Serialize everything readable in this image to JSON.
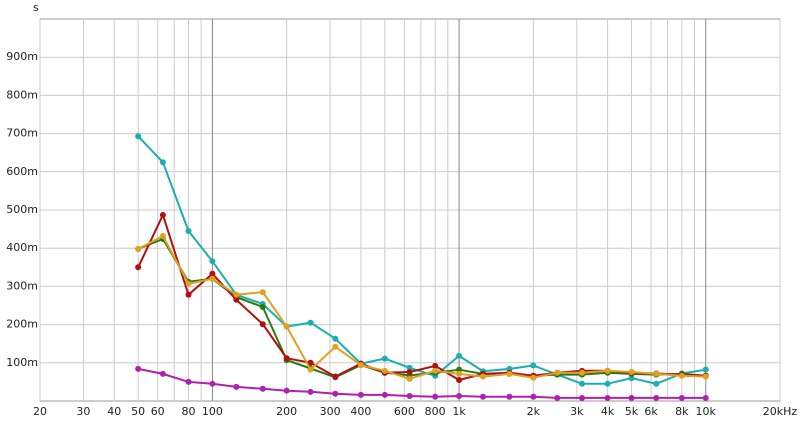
{
  "chart_data": {
    "type": "line",
    "y_label": "s",
    "xscale": "log",
    "x": [
      50,
      63,
      80,
      100,
      125,
      160,
      200,
      250,
      315,
      400,
      500,
      630,
      800,
      1000,
      1250,
      1600,
      2000,
      2500,
      3150,
      4000,
      5000,
      6300,
      8000,
      10000
    ],
    "series": [
      {
        "color": "#1aafb0",
        "values": [
          0.693,
          0.625,
          0.445,
          0.366,
          0.278,
          0.254,
          0.195,
          0.205,
          0.163,
          0.098,
          0.111,
          0.087,
          0.066,
          0.118,
          0.078,
          0.084,
          0.093,
          0.069,
          0.045,
          0.045,
          0.06,
          0.045,
          0.072,
          0.082
        ]
      },
      {
        "color": "#2a7a10",
        "values": [
          0.398,
          0.424,
          0.312,
          0.32,
          0.272,
          0.246,
          0.107,
          0.085,
          0.062,
          0.094,
          0.074,
          0.067,
          0.074,
          0.082,
          0.071,
          0.071,
          0.066,
          0.069,
          0.069,
          0.074,
          0.071,
          0.069,
          0.071,
          0.066
        ]
      },
      {
        "color": "#b01010",
        "values": [
          0.35,
          0.487,
          0.278,
          0.333,
          0.265,
          0.201,
          0.112,
          0.1,
          0.064,
          0.098,
          0.074,
          0.076,
          0.092,
          0.055,
          0.071,
          0.074,
          0.066,
          0.074,
          0.079,
          0.079,
          0.074,
          0.072,
          0.069,
          0.066
        ]
      },
      {
        "color": "#e0a020",
        "values": [
          0.398,
          0.432,
          0.307,
          0.32,
          0.278,
          0.285,
          0.195,
          0.082,
          0.142,
          0.094,
          0.079,
          0.058,
          0.079,
          0.071,
          0.064,
          0.071,
          0.061,
          0.074,
          0.074,
          0.079,
          0.076,
          0.071,
          0.066,
          0.064
        ]
      },
      {
        "color": "#b020b0",
        "values": [
          0.084,
          0.071,
          0.05,
          0.045,
          0.037,
          0.032,
          0.027,
          0.024,
          0.019,
          0.016,
          0.016,
          0.013,
          0.011,
          0.013,
          0.011,
          0.011,
          0.011,
          0.008,
          0.008,
          0.008,
          0.008,
          0.008,
          0.008,
          0.008
        ]
      }
    ],
    "xlim": [
      20,
      20000
    ],
    "ylim": [
      0,
      1
    ],
    "xticks": [
      20,
      30,
      40,
      50,
      60,
      80,
      100,
      200,
      300,
      400,
      600,
      800,
      {
        "value": 1000,
        "label": "1k"
      },
      {
        "value": 2000,
        "label": "2k"
      },
      {
        "value": 3000,
        "label": "3k"
      },
      {
        "value": 4000,
        "label": "4k"
      },
      {
        "value": 5000,
        "label": "5k"
      },
      {
        "value": 6000,
        "label": "6k"
      },
      {
        "value": 8000,
        "label": "8k"
      },
      {
        "value": 10000,
        "label": "10k"
      },
      {
        "value": 20000,
        "label": "20kHz"
      }
    ],
    "xminor": [
      70,
      90,
      500,
      700,
      900,
      7000,
      9000
    ],
    "yticks": [
      {
        "value": 0.1,
        "label": "100m"
      },
      {
        "value": 0.2,
        "label": "200m"
      },
      {
        "value": 0.3,
        "label": "300m"
      },
      {
        "value": 0.4,
        "label": "400m"
      },
      {
        "value": 0.5,
        "label": "500m"
      },
      {
        "value": 0.6,
        "label": "600m"
      },
      {
        "value": 0.7,
        "label": "700m"
      },
      {
        "value": 0.8,
        "label": "800m"
      },
      {
        "value": 0.9,
        "label": "900m"
      }
    ],
    "grid": true
  }
}
